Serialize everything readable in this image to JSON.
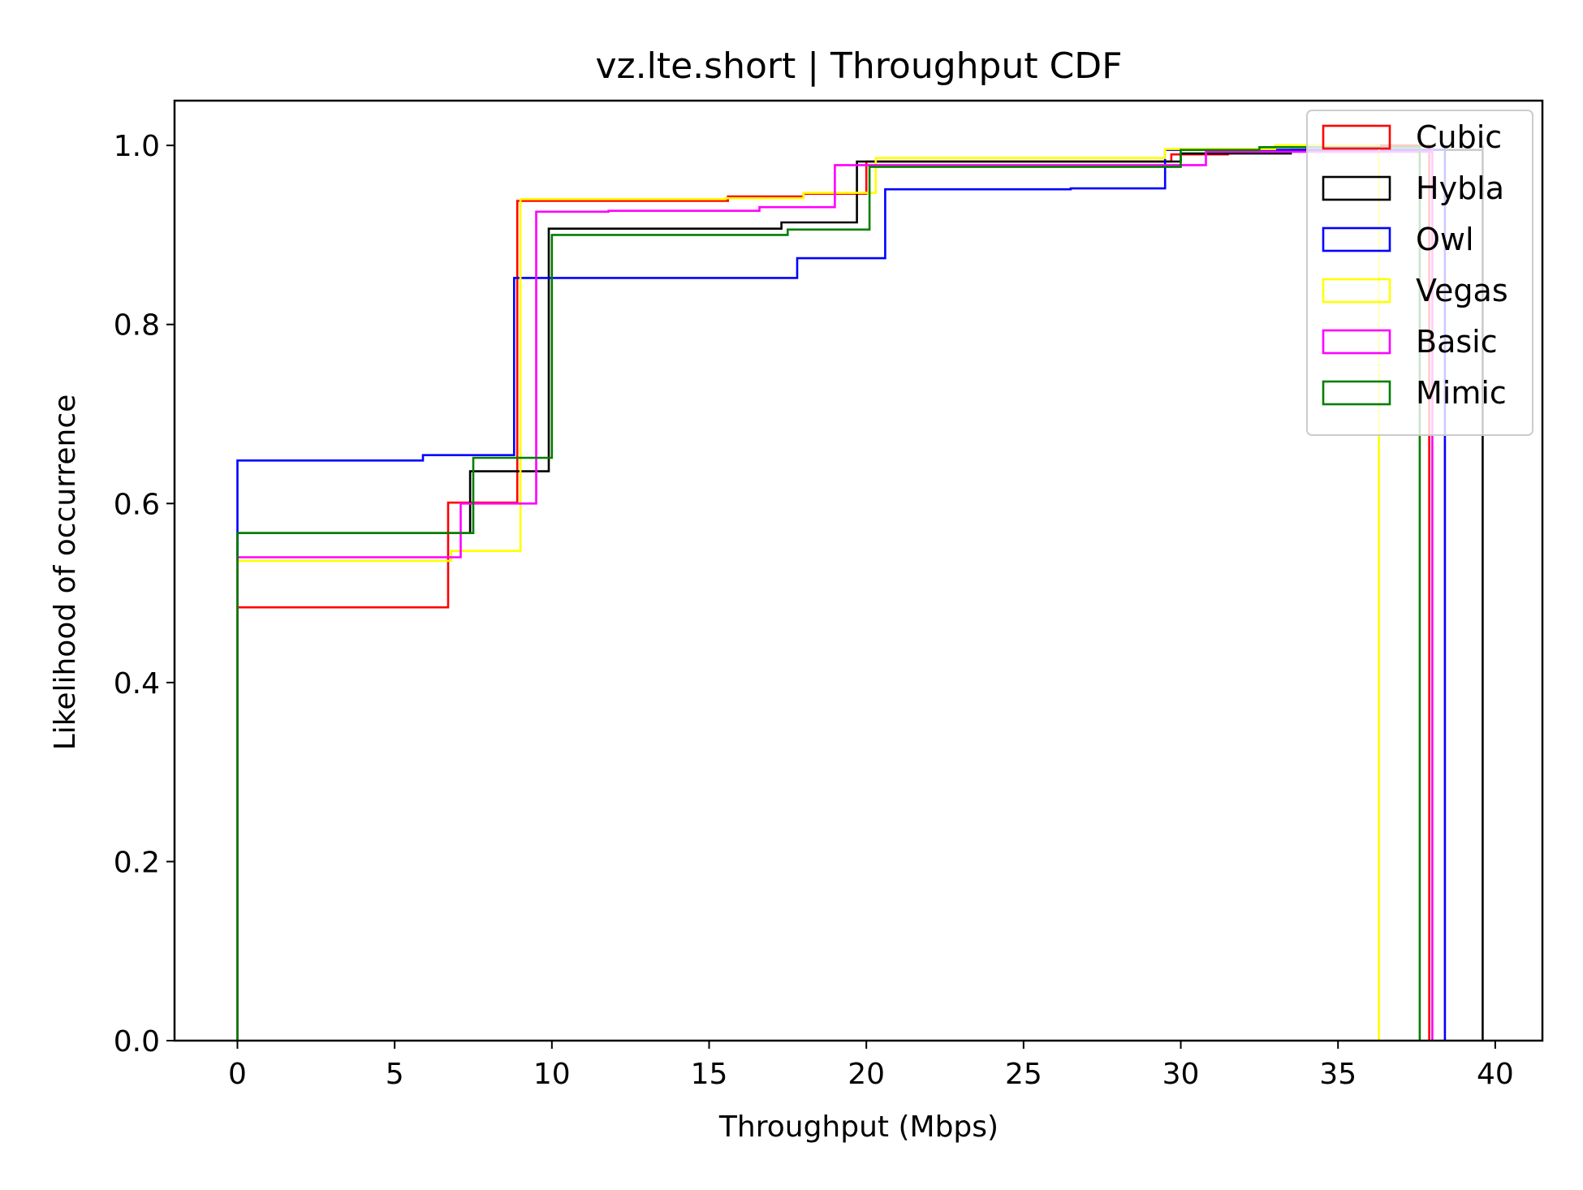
{
  "chart_data": {
    "type": "line",
    "step": true,
    "title": "vz.lte.short | Throughput CDF",
    "xlabel": "Throughput (Mbps)",
    "ylabel": "Likelihood of occurrence",
    "xlim": [
      -2,
      41.5
    ],
    "ylim": [
      0,
      1.05
    ],
    "xticks": [
      0,
      5,
      10,
      15,
      20,
      25,
      30,
      35,
      40
    ],
    "yticks": [
      0.0,
      0.2,
      0.4,
      0.6,
      0.8,
      1.0
    ],
    "xtick_labels": [
      "0",
      "5",
      "10",
      "15",
      "20",
      "25",
      "30",
      "35",
      "40"
    ],
    "ytick_labels": [
      "0.0",
      "0.2",
      "0.4",
      "0.6",
      "0.8",
      "1.0"
    ],
    "grid": false,
    "legend_position": "top-right",
    "series": [
      {
        "name": "Cubic",
        "color": "#ff0000",
        "x": [
          0,
          6.7,
          8.9,
          15.6,
          18.0,
          20.0,
          29.7,
          31.5,
          34.0,
          37.9
        ],
        "y": [
          0.484,
          0.601,
          0.938,
          0.943,
          0.946,
          0.982,
          0.99,
          0.995,
          1.0,
          1.0
        ]
      },
      {
        "name": "Hybla",
        "color": "#000000",
        "x": [
          0,
          7.4,
          9.9,
          17.3,
          19.7,
          30.0,
          33.5,
          39.6
        ],
        "y": [
          0.567,
          0.636,
          0.907,
          0.914,
          0.982,
          0.991,
          0.995,
          1.0
        ]
      },
      {
        "name": "Owl",
        "color": "#0000ff",
        "x": [
          0,
          5.9,
          8.8,
          17.8,
          20.6,
          26.5,
          29.5,
          38.4
        ],
        "y": [
          0.648,
          0.654,
          0.852,
          0.874,
          0.951,
          0.952,
          0.995,
          1.0
        ]
      },
      {
        "name": "Vegas",
        "color": "#ffff00",
        "x": [
          0,
          6.8,
          9.0,
          15.5,
          18.0,
          20.3,
          29.5,
          33.0,
          36.3
        ],
        "y": [
          0.536,
          0.547,
          0.94,
          0.941,
          0.947,
          0.986,
          0.996,
          1.0,
          1.0
        ]
      },
      {
        "name": "Basic",
        "color": "#ff00ff",
        "x": [
          0,
          7.1,
          9.5,
          11.8,
          16.6,
          19.0,
          30.8,
          38.0
        ],
        "y": [
          0.54,
          0.6,
          0.926,
          0.927,
          0.931,
          0.978,
          0.993,
          1.0
        ]
      },
      {
        "name": "Mimic",
        "color": "#007f00",
        "x": [
          0,
          7.5,
          10.0,
          17.5,
          20.1,
          30.0,
          32.5,
          37.6
        ],
        "y": [
          0.567,
          0.651,
          0.9,
          0.906,
          0.976,
          0.995,
          0.998,
          1.0
        ]
      }
    ]
  }
}
